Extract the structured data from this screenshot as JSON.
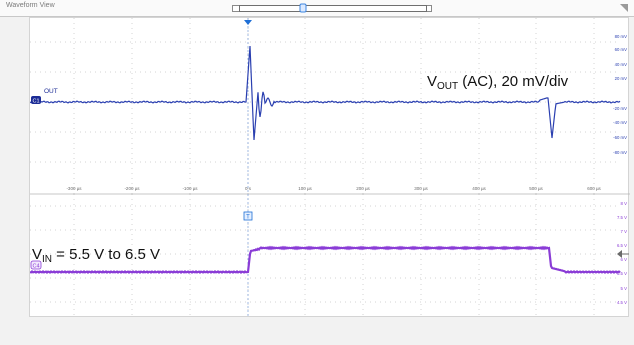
{
  "window": {
    "title": "Waveform View"
  },
  "channels": {
    "c1": {
      "badge": "C1",
      "label": "OUT",
      "color": "#2233aa"
    },
    "c4": {
      "badge": "C4",
      "color": "#8a3cd6"
    }
  },
  "time_axis": {
    "ticks": [
      "-300 µs",
      "-200 µs",
      "-100 µs",
      "0 s",
      "100 µs",
      "200 µs",
      "300 µs",
      "400 µs",
      "500 µs",
      "600 µs"
    ]
  },
  "ch1_scale": {
    "ticks": [
      "80 mV",
      "60 mV",
      "40 mV",
      "20 mV",
      "",
      "-20 mV",
      "-40 mV",
      "-60 mV",
      "-80 mV"
    ]
  },
  "ch4_scale": {
    "ticks": [
      "8 V",
      "7.5 V",
      "7 V",
      "6.5 V",
      "6 V",
      "5.5 V",
      "5 V",
      "4.5 V",
      "4 V",
      "3.5 V"
    ]
  },
  "annotations": {
    "vout": {
      "v": "V",
      "sub": "OUT",
      "rest": " (AC), 20 mV/div"
    },
    "vin": {
      "v": "V",
      "sub": "IN",
      "rest": " = 5.5 V to 6.5 V"
    }
  },
  "colors": {
    "grid": "#9a9a9a",
    "trigger": "#1f6fd6"
  }
}
